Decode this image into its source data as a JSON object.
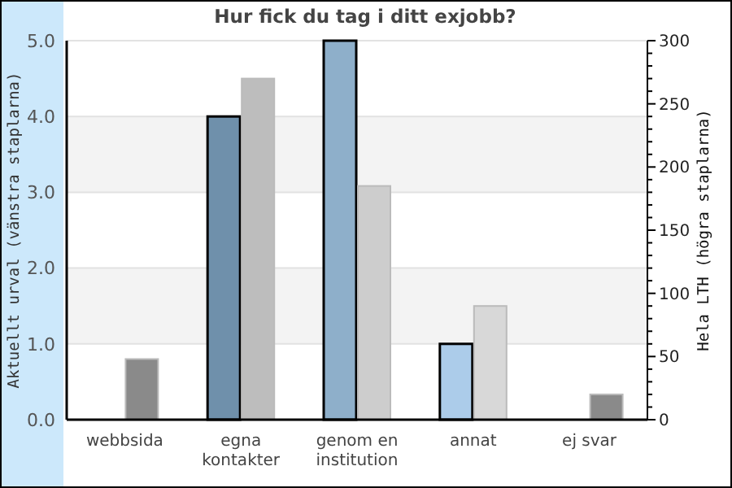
{
  "chart_data": {
    "type": "bar",
    "title": "Hur fick du tag i ditt exjobb?",
    "ylabel": "Aktuellt urval (vänstra staplarna)",
    "y2label": "Hela LTH (högra staplarna)",
    "categories": [
      "webbsida",
      "egna kontakter",
      "genom en institution",
      "annat",
      "ej svar"
    ],
    "series": [
      {
        "colors": [
          null,
          "#6f90ab",
          "#8eafca",
          "#acccea",
          null
        ],
        "values": [
          0,
          4,
          5,
          1,
          0
        ]
      },
      {
        "axis": "y2",
        "colors": [
          "#8a8a8a",
          "#bdbdbd",
          "#cdcdcd",
          "#d8d8d8",
          "#8a8a8a"
        ],
        "values": [
          48,
          270,
          185,
          90,
          20
        ]
      }
    ],
    "ylim": [
      0,
      5
    ],
    "yticks": [
      {
        "value": 0,
        "label": "0.0"
      },
      {
        "value": 1,
        "label": "1.0"
      },
      {
        "value": 2,
        "label": "2.0"
      },
      {
        "value": 3,
        "label": "3.0"
      },
      {
        "value": 4,
        "label": "4.0"
      },
      {
        "value": 5,
        "label": "5.0"
      }
    ],
    "y2lim": [
      0,
      300
    ],
    "y2ticks": [
      0,
      {
        "value": 10,
        "label": null
      },
      {
        "value": 20,
        "label": null
      },
      {
        "value": 30,
        "label": null
      },
      {
        "value": 40,
        "label": null
      },
      50,
      {
        "value": 60,
        "label": null
      },
      {
        "value": 70,
        "label": null
      },
      {
        "value": 80,
        "label": null
      },
      {
        "value": 90,
        "label": null
      },
      100,
      {
        "value": 110,
        "label": null
      },
      {
        "value": 120,
        "label": null
      },
      {
        "value": 130,
        "label": null
      },
      {
        "value": 140,
        "label": null
      },
      150,
      {
        "value": 160,
        "label": null
      },
      {
        "value": 170,
        "label": null
      },
      {
        "value": 180,
        "label": null
      },
      {
        "value": 190,
        "label": null
      },
      200,
      {
        "value": 210,
        "label": null
      },
      {
        "value": 220,
        "label": null
      },
      {
        "value": 230,
        "label": null
      },
      {
        "value": 240,
        "label": null
      },
      250,
      {
        "value": 260,
        "label": null
      },
      {
        "value": 270,
        "label": null
      },
      {
        "value": 280,
        "label": null
      },
      {
        "value": 290,
        "label": null
      },
      300
    ],
    "grid": "y"
  }
}
